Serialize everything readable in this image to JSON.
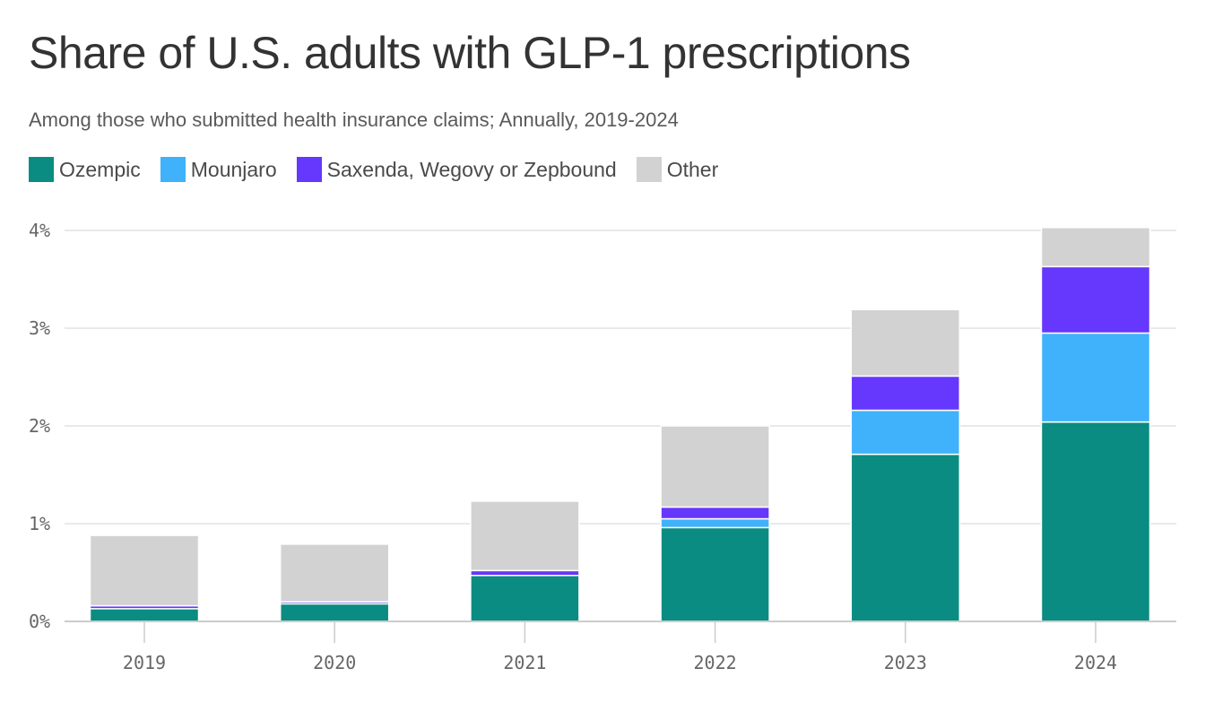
{
  "title": "Share of U.S. adults with GLP-1 prescriptions",
  "subtitle": "Among those who submitted health insurance claims; Annually, 2019-2024",
  "colors": {
    "Ozempic": "#0a8c82",
    "Mounjaro": "#3fb2fb",
    "Saxenda, Wegovy or Zepbound": "#6637fc",
    "Other": "#d1d2d1",
    "grid": "#e2e2e2",
    "axis": "#cccccc"
  },
  "chart_data": {
    "type": "bar",
    "stacked": true,
    "title": "Share of U.S. adults with GLP-1 prescriptions",
    "subtitle": "Among those who submitted health insurance claims; Annually, 2019-2024",
    "categories": [
      "2019",
      "2020",
      "2021",
      "2022",
      "2023",
      "2024"
    ],
    "series": [
      {
        "name": "Ozempic",
        "values": [
          0.13,
          0.18,
          0.47,
          0.96,
          1.71,
          2.04
        ]
      },
      {
        "name": "Mounjaro",
        "values": [
          0,
          0,
          0,
          0.09,
          0.45,
          0.91
        ]
      },
      {
        "name": "Saxenda, Wegovy or Zepbound",
        "values": [
          0.03,
          0.02,
          0.05,
          0.12,
          0.35,
          0.68
        ]
      },
      {
        "name": "Other",
        "values": [
          0.72,
          0.59,
          0.71,
          0.83,
          0.68,
          0.4
        ]
      }
    ],
    "y_ticks": [
      "0%",
      "1%",
      "2%",
      "3%",
      "4%"
    ],
    "ylim": [
      0,
      4
    ],
    "grid": true,
    "legend_position": "top-left"
  }
}
